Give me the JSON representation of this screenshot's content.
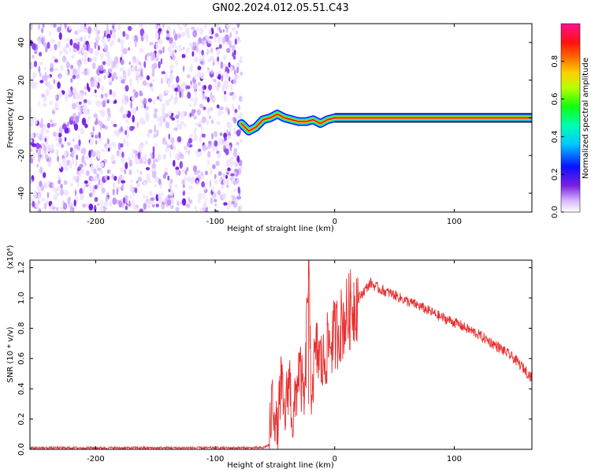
{
  "title": "GN02.2024.012.05.51.C43",
  "chart_data": [
    {
      "type": "heatmap",
      "name": "spectrogram",
      "xlabel": "Height of straight line (km)",
      "ylabel": "Frequency (Hz)",
      "xlim": [
        -255,
        165
      ],
      "ylim": [
        -50,
        50
      ],
      "xticks": [
        -200,
        -100,
        0,
        100
      ],
      "yticks": [
        -40,
        -20,
        0,
        20,
        40
      ],
      "noise_region_x": [
        -255,
        -78
      ],
      "signal_track": [
        {
          "x": -78,
          "y": -3
        },
        {
          "x": -72,
          "y": -7
        },
        {
          "x": -66,
          "y": -5
        },
        {
          "x": -60,
          "y": -1
        },
        {
          "x": -54,
          "y": 0
        },
        {
          "x": -48,
          "y": 2
        },
        {
          "x": -42,
          "y": 0
        },
        {
          "x": -36,
          "y": -1
        },
        {
          "x": -30,
          "y": -2
        },
        {
          "x": -24,
          "y": -2
        },
        {
          "x": -18,
          "y": -1
        },
        {
          "x": -12,
          "y": -3
        },
        {
          "x": -6,
          "y": -1
        },
        {
          "x": 0,
          "y": 0
        },
        {
          "x": 165,
          "y": 0
        }
      ],
      "colorbar": {
        "label": "Normalized spectral amplitude",
        "range": [
          0,
          1
        ],
        "ticks": [
          "0.0",
          "0.2",
          "0.4",
          "0.6",
          "0.8"
        ],
        "tick_values": [
          0,
          0.2,
          0.4,
          0.6,
          0.8
        ]
      }
    },
    {
      "type": "line",
      "name": "snr",
      "xlabel": "Height of straight line (km)",
      "ylabel": "SNR (10 * v/v)",
      "scale_label": "(x10⁴)",
      "xlim": [
        -255,
        165
      ],
      "ylim": [
        0,
        1.25
      ],
      "xticks": [
        -200,
        -100,
        0,
        100
      ],
      "yticks": [
        "0.0",
        "0.2",
        "0.4",
        "0.6",
        "0.8",
        "1.0",
        "1.2"
      ],
      "ytick_values": [
        0,
        0.2,
        0.4,
        0.6,
        0.8,
        1.0,
        1.2
      ],
      "color": "#e83030",
      "series": {
        "name": "SNR",
        "x": [
          -255,
          -200,
          -150,
          -100,
          -60,
          -55,
          -52,
          -48,
          -45,
          -42,
          -38,
          -35,
          -30,
          -25,
          -22,
          -20,
          -15,
          -10,
          -5,
          0,
          5,
          10,
          15,
          20,
          25,
          30,
          35,
          40,
          50,
          60,
          70,
          80,
          90,
          100,
          110,
          120,
          130,
          140,
          150,
          160,
          165
        ],
        "y": [
          0.01,
          0.01,
          0.01,
          0.01,
          0.01,
          0.03,
          0.35,
          0.1,
          0.45,
          0.2,
          0.5,
          0.15,
          0.55,
          0.3,
          1.25,
          0.4,
          0.65,
          0.55,
          0.7,
          0.75,
          0.82,
          0.88,
          0.95,
          1.0,
          1.05,
          1.1,
          1.07,
          1.05,
          1.02,
          0.98,
          0.95,
          0.91,
          0.87,
          0.84,
          0.8,
          0.76,
          0.71,
          0.66,
          0.6,
          0.52,
          0.47
        ]
      }
    }
  ]
}
